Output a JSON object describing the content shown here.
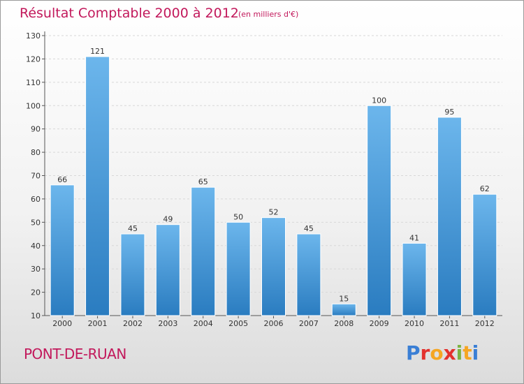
{
  "header": {
    "title": "Résultat Comptable 2000 à 2012",
    "subtitle": "(en milliers d'€)"
  },
  "footer": {
    "commune": "PONT-DE-RUAN",
    "brand": "Proxiti",
    "brand_colors": [
      "#3a7fd5",
      "#e3312d",
      "#f5a623",
      "#e3312d",
      "#7cb342",
      "#f5a623",
      "#3a7fd5"
    ]
  },
  "colors": {
    "bar_light": "#6cb6ec",
    "bar_dark": "#2a7cc0",
    "accent": "#c2185b"
  },
  "chart_data": {
    "type": "bar",
    "title": "Résultat Comptable 2000 à 2012",
    "subtitle": "(en milliers d'€)",
    "xlabel": "",
    "ylabel": "",
    "ylim": [
      10,
      130
    ],
    "yticks": [
      10,
      20,
      30,
      40,
      50,
      60,
      70,
      80,
      90,
      100,
      110,
      120,
      130
    ],
    "grid": true,
    "categories": [
      "2000",
      "2001",
      "2002",
      "2003",
      "2004",
      "2005",
      "2006",
      "2007",
      "2008",
      "2009",
      "2010",
      "2011",
      "2012"
    ],
    "values": [
      66,
      121,
      45,
      49,
      65,
      50,
      52,
      45,
      15,
      100,
      41,
      95,
      62
    ]
  }
}
